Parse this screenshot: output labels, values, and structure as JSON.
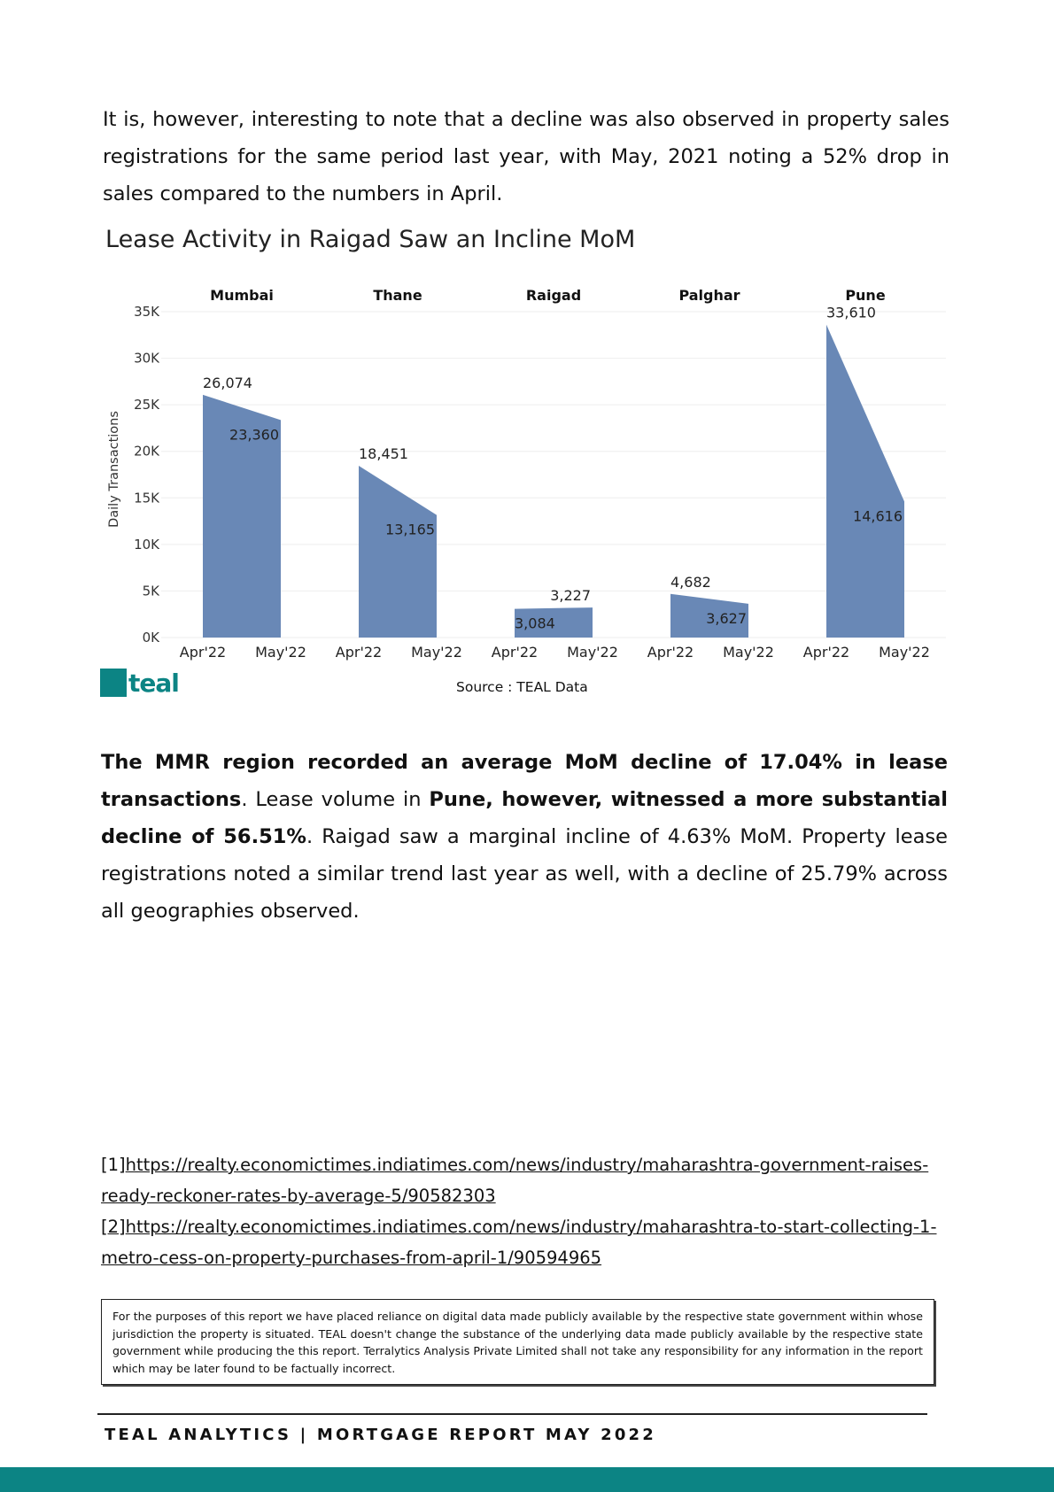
{
  "intro": "It is, however, interesting to note that a decline was also observed in property sales registrations for the same period last year, with May, 2021 noting a 52% drop in sales compared to the numbers in April.",
  "chart_heading": "Lease Activity in Raigad Saw an Incline MoM",
  "chart_data": {
    "type": "area",
    "ylabel": "Daily Transactions",
    "ylim": [
      0,
      35000
    ],
    "yticks": [
      0,
      5000,
      10000,
      15000,
      20000,
      25000,
      30000,
      35000
    ],
    "ytick_labels": [
      "0K",
      "5K",
      "10K",
      "15K",
      "20K",
      "25K",
      "30K",
      "35K"
    ],
    "x_categories": [
      "Apr'22",
      "May'22"
    ],
    "panels": [
      {
        "name": "Mumbai",
        "values": [
          26074,
          23360
        ],
        "labels": [
          "26,074",
          "23,360"
        ]
      },
      {
        "name": "Thane",
        "values": [
          18451,
          13165
        ],
        "labels": [
          "18,451",
          "13,165"
        ]
      },
      {
        "name": "Raigad",
        "values": [
          3084,
          3227
        ],
        "labels": [
          "3,084",
          "3,227"
        ]
      },
      {
        "name": "Palghar",
        "values": [
          4682,
          3627
        ],
        "labels": [
          "4,682",
          "3,627"
        ]
      },
      {
        "name": "Pune",
        "values": [
          33610,
          14616
        ],
        "labels": [
          "33,610",
          "14,616"
        ]
      }
    ],
    "color": "#6484b4",
    "grid": true
  },
  "logo_text": "teal",
  "source": "Source : TEAL Data",
  "summary": {
    "s1_bold": "The MMR region recorded an average MoM decline of 17.04% in lease transactions",
    "s1_end": ".",
    "s2_start": "Lease volume in ",
    "s2_bold": "Pune, however, witnessed a more substantial decline of 56.51%",
    "s2_end": ".",
    "s3": "Raigad saw a marginal incline of 4.63% MoM. Property lease registrations noted a similar trend last year as well, with a decline of 25.79% across all geographies observed."
  },
  "references": [
    {
      "marker": "[1]",
      "url": "https://realty.economictimes.indiatimes.com/news/industry/maharashtra-government-raises-ready-reckoner-rates-by-average-5/90582303"
    },
    {
      "marker": "[2]",
      "url": "https://realty.economictimes.indiatimes.com/news/industry/maharashtra-to-start-collecting-1-metro-cess-on-property-purchases-from-april-1/90594965"
    }
  ],
  "disclaimer": "For the purposes of this report we have placed reliance on digital data made publicly available by the respective state government within whose jurisdiction the property is situated. TEAL doesn't change the substance of the underlying data made publicly available by the respective state government while producing the this report. Terralytics Analysis Private Limited shall not take any responsibility for any information in the report which may be later found to be factually incorrect.",
  "footer": "TEAL ANALYTICS | MORTGAGE REPORT MAY 2022"
}
